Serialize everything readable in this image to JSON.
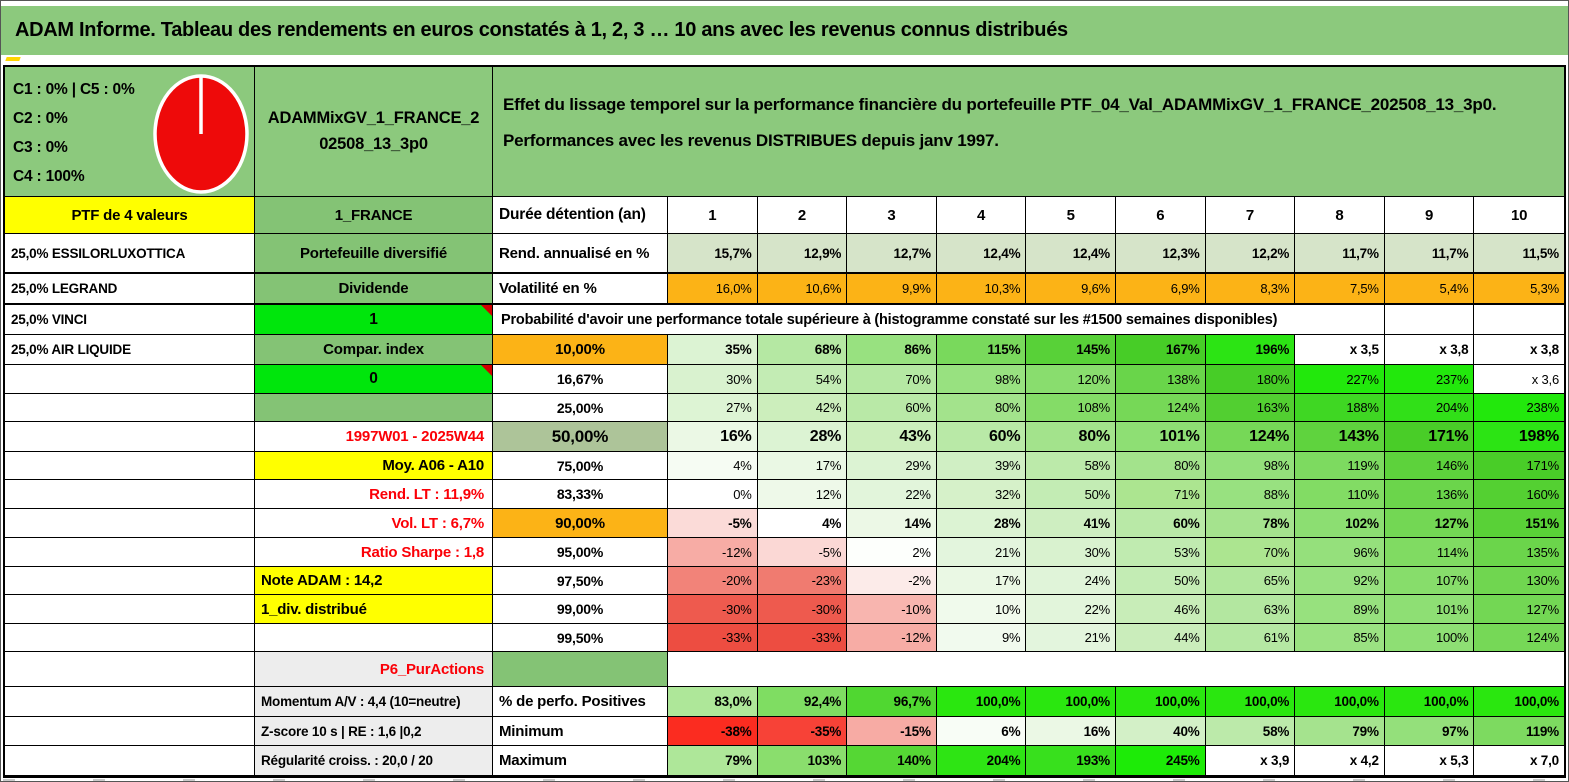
{
  "title": "ADAM Informe. Tableau des rendements en euros constatés à 1, 2, 3 … 10 ans avec les revenus connus distribués",
  "info": {
    "c_lines": [
      "C1 : 0% | C5 : 0%",
      "C2 : 0%",
      "C3 : 0%",
      "C4 : 100%"
    ],
    "portfolio_name": "ADAMMixGV_1_FRANCE_202508_13_3p0",
    "desc1": "Effet du lissage temporel sur la performance financière du portefeuille PTF_04_Val_ADAMMixGV_1_FRANCE_202508_13_3p0.",
    "desc2": "Performances avec les revenus DISTRIBUES depuis janv 1997.",
    "pie": {
      "fill": "#ee0a0a",
      "stroke": "#ffffff",
      "label": "allocation 100% C4"
    }
  },
  "colors": {
    "band_green": "#8cc97d",
    "cell_green": "#84c375",
    "bright_green": "#00e60c",
    "orange": "#fcb316",
    "yellow": "#ffff00",
    "olive": "#adc499",
    "gray_label": "#ededed",
    "red_text": "#fb0007",
    "pale_sage": "#d6e4c9"
  },
  "table": {
    "header": {
      "a": "PTF de 4 valeurs",
      "b": "1_FRANCE",
      "c": "Durée détention (an)",
      "years": [
        "1",
        "2",
        "3",
        "4",
        "5",
        "6",
        "7",
        "8",
        "9",
        "10"
      ]
    },
    "prob_title": "Probabilité d'avoir une performance totale supérieure à (histogramme constaté sur les #1500 semaines disponibles)",
    "rows": [
      {
        "id": "rend",
        "type": "normal",
        "thick_bottom": true,
        "a": "25,0% ESSILORLUXOTTICA",
        "b": {
          "text": "Portefeuille diversifié",
          "style": "green"
        },
        "c": {
          "text": "Rend. annualisé en %",
          "style": "left"
        },
        "vstyle": "bold",
        "values": [
          "15,7%",
          "12,9%",
          "12,7%",
          "12,4%",
          "12,4%",
          "12,3%",
          "12,2%",
          "11,7%",
          "11,7%",
          "11,5%"
        ],
        "bg": [
          "#d6e4c9",
          "#d6e4c9",
          "#d6e4c9",
          "#d6e4c9",
          "#d6e4c9",
          "#d6e4c9",
          "#d6e4c9",
          "#d6e4c9",
          "#d6e4c9",
          "#d6e4c9"
        ]
      },
      {
        "id": "vol",
        "type": "normal",
        "thick_bottom": true,
        "a": "25,0% LEGRAND",
        "b": {
          "text": "Dividende",
          "style": "green"
        },
        "c": {
          "text": "Volatilité en %",
          "style": "left"
        },
        "vstyle": "norm",
        "values": [
          "16,0%",
          "10,6%",
          "9,9%",
          "10,3%",
          "9,6%",
          "6,9%",
          "8,3%",
          "7,5%",
          "5,4%",
          "5,3%"
        ],
        "bg": [
          "#fcb316",
          "#fcb316",
          "#fcb316",
          "#fcb316",
          "#fcb316",
          "#fcb316",
          "#fcb316",
          "#fcb316",
          "#fcb316",
          "#fcb316"
        ]
      },
      {
        "id": "prob",
        "type": "prob-header",
        "a": "25,0% VINCI",
        "b": {
          "text": "1",
          "style": "bright-corner"
        }
      },
      {
        "id": "p10",
        "type": "normal",
        "a": "25,0% AIR LIQUIDE",
        "b": {
          "text": "Compar. index",
          "style": "green"
        },
        "c": {
          "text": "10,00%",
          "style": "center-orange"
        },
        "vstyle": "bold",
        "values": [
          "35%",
          "68%",
          "86%",
          "115%",
          "145%",
          "167%",
          "196%",
          "x 3,5",
          "x 3,8",
          "x 3,8"
        ],
        "bg": [
          "#dcf3d3",
          "#b5e8a3",
          "#98e180",
          "#79d95c",
          "#58d138",
          "#47cd27",
          "#2ce414",
          "#ffffff",
          "#ffffff",
          "#ffffff"
        ]
      },
      {
        "id": "p1667",
        "type": "normal",
        "a": "",
        "b": {
          "text": "0",
          "style": "bright-corner"
        },
        "c": {
          "text": "16,67%",
          "style": "center"
        },
        "vstyle": "norm",
        "values": [
          "30%",
          "54%",
          "70%",
          "98%",
          "120%",
          "138%",
          "180%",
          "227%",
          "237%",
          "x 3,6"
        ],
        "bg": [
          "#d9f2cf",
          "#c3ecb4",
          "#b5e8a3",
          "#98e180",
          "#89dd6e",
          "#69d54a",
          "#47cd27",
          "#22e80c",
          "#22e80c",
          "#ffffff"
        ]
      },
      {
        "id": "p25",
        "type": "normal",
        "a": "",
        "b": {
          "text": "",
          "style": "green"
        },
        "c": {
          "text": "25,00%",
          "style": "center"
        },
        "vstyle": "norm",
        "values": [
          "27%",
          "42%",
          "60%",
          "80%",
          "108%",
          "124%",
          "163%",
          "188%",
          "204%",
          "238%"
        ],
        "bg": [
          "#ddf4d4",
          "#cceebc",
          "#b9e9a7",
          "#a3e38c",
          "#84dc67",
          "#76d857",
          "#52cf31",
          "#3fd723",
          "#31e018",
          "#22e80c"
        ]
      },
      {
        "id": "p50",
        "type": "normal",
        "a": "",
        "b": {
          "text": "1997W01 - 2025W44",
          "style": "red-right"
        },
        "c": {
          "text": "50,00%",
          "style": "center-olive-big"
        },
        "vstyle": "big",
        "values": [
          "16%",
          "28%",
          "43%",
          "60%",
          "80%",
          "101%",
          "124%",
          "143%",
          "171%",
          "198%"
        ],
        "bg": [
          "#ebf8e5",
          "#dcf3d3",
          "#cceebc",
          "#b9e9a7",
          "#a3e38c",
          "#8edf74",
          "#76d857",
          "#5fd33e",
          "#49cd28",
          "#2ce414"
        ]
      },
      {
        "id": "p75",
        "type": "normal",
        "a": "",
        "b": {
          "text": "Moy. A06 - A10",
          "style": "yellow-right"
        },
        "c": {
          "text": "75,00%",
          "style": "center"
        },
        "vstyle": "norm",
        "values": [
          "4%",
          "17%",
          "29%",
          "39%",
          "58%",
          "80%",
          "98%",
          "119%",
          "146%",
          "171%"
        ],
        "bg": [
          "#f6fcf3",
          "#eaf8e4",
          "#dcf3d3",
          "#d0efc4",
          "#bceaaa",
          "#a3e38c",
          "#93e07b",
          "#7dda60",
          "#5dd23c",
          "#49cd28"
        ]
      },
      {
        "id": "p8333",
        "type": "normal",
        "a": "",
        "b": {
          "text": "Rend. LT : 11,9%",
          "style": "red-right"
        },
        "c": {
          "text": "83,33%",
          "style": "center"
        },
        "vstyle": "norm",
        "values": [
          "0%",
          "12%",
          "22%",
          "32%",
          "50%",
          "71%",
          "88%",
          "110%",
          "136%",
          "160%"
        ],
        "bg": [
          "#ffffff",
          "#eef9e9",
          "#e2f5db",
          "#d6f1c9",
          "#c3ecb4",
          "#ace590",
          "#98e180",
          "#82dc64",
          "#6bd54b",
          "#54d032"
        ]
      },
      {
        "id": "p90",
        "type": "normal",
        "a": "",
        "b": {
          "text": "Vol. LT : 6,7%",
          "style": "red-right"
        },
        "c": {
          "text": "90,00%",
          "style": "center-orange"
        },
        "vstyle": "bold",
        "values": [
          "-5%",
          "4%",
          "14%",
          "28%",
          "41%",
          "60%",
          "78%",
          "102%",
          "127%",
          "151%"
        ],
        "bg": [
          "#fbdbd8",
          "#ffffff",
          "#ecf8e6",
          "#dcf3d3",
          "#ceeec1",
          "#b9e9a7",
          "#a5e38e",
          "#8cde72",
          "#73d754",
          "#59d137"
        ]
      },
      {
        "id": "p95",
        "type": "normal",
        "a": "",
        "b": {
          "text": "Ratio Sharpe : 1,8",
          "style": "red-right"
        },
        "c": {
          "text": "95,00%",
          "style": "center"
        },
        "vstyle": "norm",
        "values": [
          "-12%",
          "-5%",
          "2%",
          "21%",
          "30%",
          "53%",
          "70%",
          "96%",
          "114%",
          "135%"
        ],
        "bg": [
          "#f7aca5",
          "#fbd8d5",
          "#fdfffc",
          "#e3f5dd",
          "#d9f2cf",
          "#c0ebb0",
          "#ace590",
          "#95e07c",
          "#80db62",
          "#6bd54b"
        ]
      },
      {
        "id": "p975",
        "type": "normal",
        "a": "",
        "b": {
          "text": "Note ADAM : 14,2",
          "style": "yellow-left"
        },
        "c": {
          "text": "97,50%",
          "style": "center"
        },
        "vstyle": "norm",
        "values": [
          "-20%",
          "-23%",
          "-2%",
          "17%",
          "24%",
          "50%",
          "65%",
          "92%",
          "107%",
          "130%"
        ],
        "bg": [
          "#f28379",
          "#f07b70",
          "#fcebe9",
          "#eaf8e4",
          "#e0f4d9",
          "#c3ecb4",
          "#b1e79d",
          "#98e180",
          "#87dd6b",
          "#70d650"
        ]
      },
      {
        "id": "p99",
        "type": "normal",
        "a": "",
        "b": {
          "text": "1_div. distribué",
          "style": "yellow-left"
        },
        "c": {
          "text": "99,00%",
          "style": "center"
        },
        "vstyle": "norm",
        "values": [
          "-30%",
          "-30%",
          "-10%",
          "10%",
          "22%",
          "46%",
          "63%",
          "89%",
          "101%",
          "127%"
        ],
        "bg": [
          "#ee5a4e",
          "#ee5a4e",
          "#f8b5af",
          "#f0faec",
          "#e2f5db",
          "#c8edb8",
          "#b3e7a0",
          "#97e17e",
          "#8edf74",
          "#73d754"
        ]
      },
      {
        "id": "p995",
        "type": "normal",
        "a": "",
        "b": {
          "text": "",
          "style": "white"
        },
        "c": {
          "text": "99,50%",
          "style": "center"
        },
        "vstyle": "norm",
        "values": [
          "-33%",
          "-33%",
          "-12%",
          "9%",
          "21%",
          "44%",
          "61%",
          "85%",
          "100%",
          "124%"
        ],
        "bg": [
          "#ed4d41",
          "#ed4d41",
          "#f7aca5",
          "#f1faee",
          "#e3f5dd",
          "#caedbb",
          "#b5e8a3",
          "#9be282",
          "#8edf74",
          "#76d857"
        ]
      },
      {
        "id": "p6",
        "type": "gap",
        "a": "",
        "b": {
          "text": "P6_PurActions",
          "style": "gray-red-right"
        },
        "c": {
          "text": "",
          "style": "green-empty"
        }
      },
      {
        "id": "perfo",
        "type": "normal",
        "a": "",
        "b": {
          "text": "Momentum A/V : 4,4 (10=neutre)",
          "style": "gray-left"
        },
        "c": {
          "text": "% de perfo. Positives",
          "style": "left"
        },
        "vstyle": "bold",
        "values": [
          "83,0%",
          "92,4%",
          "96,7%",
          "100,0%",
          "100,0%",
          "100,0%",
          "100,0%",
          "100,0%",
          "100,0%",
          "100,0%"
        ],
        "bg": [
          "#aee799",
          "#7fdd62",
          "#50d731",
          "#2ae70f",
          "#2ae70f",
          "#2ae70f",
          "#2ae70f",
          "#2ae70f",
          "#2ae70f",
          "#2ae70f"
        ]
      },
      {
        "id": "min",
        "type": "normal",
        "a": "",
        "b": {
          "text": "Z-score 10 s | RE : 1,6 |0,2",
          "style": "gray-left"
        },
        "c": {
          "text": "Minimum",
          "style": "left"
        },
        "vstyle": "bold",
        "values": [
          "-38%",
          "-35%",
          "-15%",
          "6%",
          "16%",
          "40%",
          "58%",
          "79%",
          "97%",
          "119%"
        ],
        "bg": [
          "#fb2c20",
          "#f74237",
          "#f7aba4",
          "#f8fdf6",
          "#ebf8e5",
          "#d3f0c7",
          "#bceaaa",
          "#a5e38e",
          "#94e07b",
          "#7dda60"
        ]
      },
      {
        "id": "max",
        "type": "normal",
        "a": "",
        "b": {
          "text": "Régularité croiss. : 20,0 / 20",
          "style": "gray-left"
        },
        "c": {
          "text": "Maximum",
          "style": "left"
        },
        "vstyle": "bold",
        "values": [
          "79%",
          "103%",
          "140%",
          "204%",
          "193%",
          "245%",
          "x 3,9",
          "x 4,2",
          "x 5,3",
          "x 7,0"
        ],
        "bg": [
          "#aee799",
          "#8ade6d",
          "#55d734",
          "#2ee414",
          "#38e01d",
          "#1deb07",
          "#ffffff",
          "#ffffff",
          "#ffffff",
          "#ffffff"
        ]
      }
    ]
  }
}
